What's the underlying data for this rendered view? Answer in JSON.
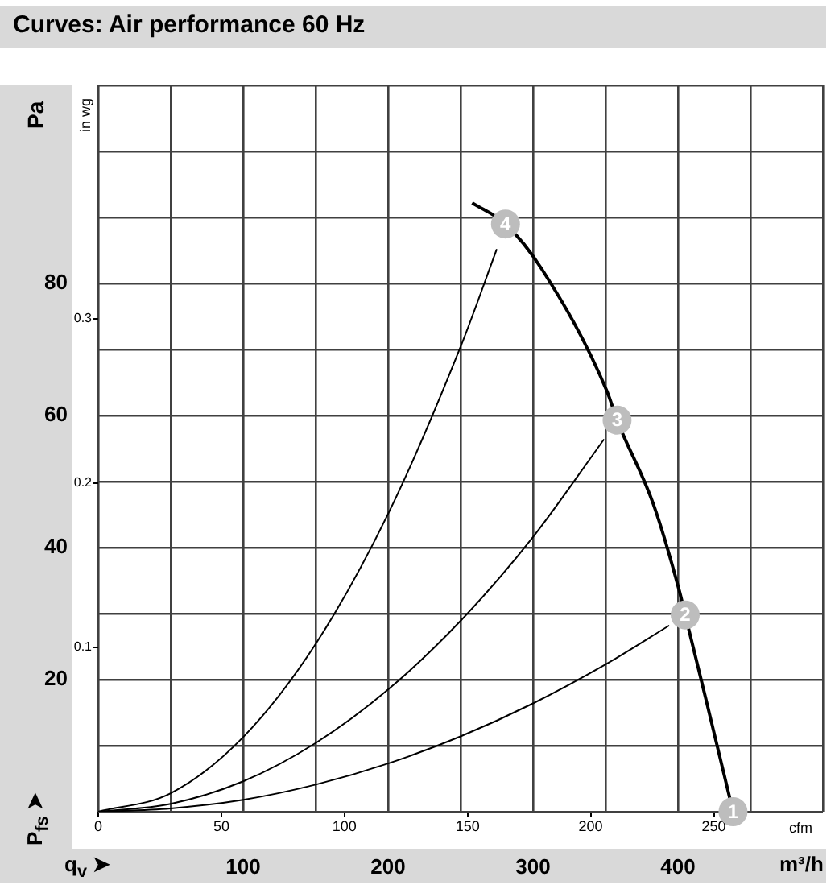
{
  "chart_data": {
    "type": "line",
    "title": "Curves: Air performance 60 Hz",
    "xlabel": "m³/h",
    "ylabel": "Pa",
    "x2label": "cfm",
    "y2label": "in wg",
    "xlim": [
      0,
      500
    ],
    "xticks": [
      {
        "value": 0,
        "label": null
      },
      {
        "value": 50,
        "label": null
      },
      100,
      {
        "value": 150,
        "label": null
      },
      200,
      {
        "value": 250,
        "label": null
      },
      300,
      {
        "value": 350,
        "label": null
      },
      400,
      {
        "value": 450,
        "label": null
      },
      {
        "value": 500,
        "label": null
      }
    ],
    "ylim": [
      0,
      110
    ],
    "yticks": [
      {
        "value": 0,
        "label": null
      },
      {
        "value": 10,
        "label": null
      },
      20,
      {
        "value": 30,
        "label": null
      },
      40,
      {
        "value": 50,
        "label": null
      },
      60,
      {
        "value": 70,
        "label": null
      },
      80,
      {
        "value": 90,
        "label": null
      },
      {
        "value": 100,
        "label": null
      },
      {
        "value": 110,
        "label": null
      }
    ],
    "x2lim": [
      0,
      294.3
    ],
    "x2ticks": [
      0,
      50,
      100,
      150,
      200,
      250
    ],
    "y2lim": [
      0,
      0.442
    ],
    "y2ticks": [
      0.1,
      0.2,
      0.3
    ],
    "grid": true,
    "marker": "none",
    "series": [
      {
        "color": "#000000",
        "x": [
          258,
          281,
          306,
          351,
          358,
          383,
          401,
          405,
          419,
          438
        ],
        "values": [
          92.2,
          89,
          82.2,
          63.7,
          59.3,
          46.6,
          33.4,
          29.8,
          17.3,
          0
        ]
      },
      {
        "color": "#000000",
        "x": [
          0,
          50,
          100,
          150,
          200,
          250,
          275
        ],
        "values": [
          0,
          2.8,
          11.3,
          25.4,
          45.1,
          70.4,
          85.2
        ]
      },
      {
        "color": "#000000",
        "x": [
          0,
          50,
          100,
          150,
          200,
          250,
          300,
          349
        ],
        "values": [
          0,
          1.2,
          4.6,
          10.4,
          18.5,
          28.9,
          41.6,
          56.4
        ]
      },
      {
        "color": "#000000",
        "x": [
          0,
          50,
          100,
          150,
          200,
          250,
          300,
          350,
          394
        ],
        "values": [
          0,
          0.5,
          1.8,
          4.1,
          7.3,
          11.4,
          16.4,
          22.3,
          28.2
        ]
      }
    ],
    "annotations": [
      {
        "text": "1",
        "x": 438,
        "y": 0
      },
      {
        "text": "2",
        "x": 405,
        "y": 29.8
      },
      {
        "text": "3",
        "x": 358,
        "y": 59.3
      },
      {
        "text": "4",
        "x": 281,
        "y": 89
      },
      "q$_{v}$ ➤",
      "P$_{fs}$ ➤"
    ]
  }
}
